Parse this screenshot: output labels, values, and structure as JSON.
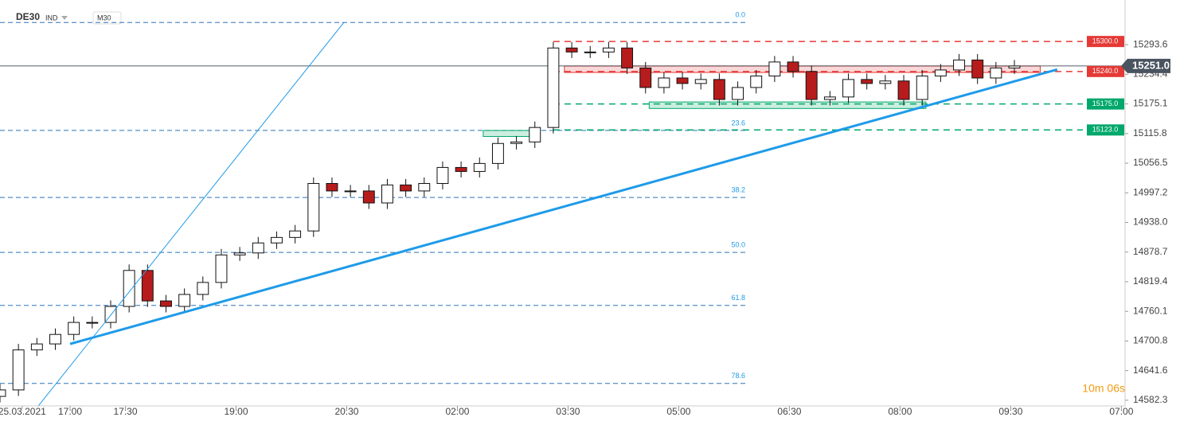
{
  "chart_data": {
    "type": "candlestick",
    "symbol": "DE30",
    "instrument_type": "IND",
    "interval": "M30",
    "countdown": "10m 06s",
    "x": [
      0,
      5,
      10,
      15,
      20,
      25,
      30,
      35,
      40,
      45,
      50,
      55,
      60,
      65,
      70,
      75,
      80,
      85,
      90,
      95,
      100,
      105,
      110,
      115,
      120,
      125,
      130,
      135,
      140,
      145,
      150,
      155,
      160,
      165,
      170,
      175,
      180,
      185,
      190,
      195,
      200,
      205,
      210,
      215,
      220,
      225,
      230,
      235,
      240,
      245,
      250,
      255,
      260,
      265,
      270,
      275
    ],
    "open": [
      14590,
      14603,
      14683,
      14695,
      14714,
      14738,
      14738,
      14770,
      14842,
      14781,
      14770,
      14794,
      14818,
      14873,
      14877,
      14897,
      14908,
      14921,
      15016,
      15001,
      15001,
      14977,
      15013,
      15001,
      15016,
      15048,
      15040,
      15056,
      15096,
      15099,
      15128,
      15287,
      15279,
      15279,
      15287,
      15247,
      15208,
      15227,
      15216,
      15224,
      15184,
      15208,
      15231,
      15259,
      15240,
      15184,
      15189,
      15224,
      15216,
      15221,
      15184,
      15231,
      15243,
      15263,
      15227,
      15247
    ],
    "high": [
      14615,
      14695,
      14707,
      14726,
      14750,
      14750,
      14782,
      14854,
      14854,
      14793,
      14806,
      14830,
      14885,
      14889,
      14909,
      14920,
      14933,
      15028,
      15028,
      15013,
      15013,
      15025,
      15025,
      15028,
      15060,
      15060,
      15068,
      15108,
      15111,
      15140,
      15299,
      15299,
      15291,
      15299,
      15299,
      15259,
      15239,
      15239,
      15236,
      15236,
      15220,
      15243,
      15271,
      15271,
      15252,
      15201,
      15236,
      15236,
      15233,
      15233,
      15243,
      15255,
      15275,
      15275,
      15259,
      15263
    ],
    "low": [
      14578,
      14591,
      14671,
      14683,
      14702,
      14726,
      14726,
      14758,
      14769,
      14758,
      14758,
      14782,
      14806,
      14861,
      14865,
      14885,
      14896,
      14909,
      14989,
      14989,
      14965,
      14965,
      14989,
      14989,
      15004,
      15028,
      15028,
      15044,
      15084,
      15087,
      15116,
      15267,
      15267,
      15267,
      15235,
      15196,
      15196,
      15204,
      15204,
      15172,
      15172,
      15196,
      15219,
      15228,
      15172,
      15172,
      15177,
      15204,
      15204,
      15172,
      15172,
      15219,
      15231,
      15215,
      15215,
      15235
    ],
    "close": [
      14603,
      14683,
      14695,
      14714,
      14738,
      14738,
      14770,
      14842,
      14781,
      14770,
      14794,
      14818,
      14873,
      14877,
      14897,
      14908,
      14921,
      15016,
      15001,
      15001,
      14977,
      15013,
      15001,
      15016,
      15048,
      15040,
      15056,
      15096,
      15099,
      15128,
      15287,
      15279,
      15279,
      15287,
      15247,
      15208,
      15227,
      15216,
      15224,
      15184,
      15208,
      15231,
      15259,
      15240,
      15184,
      15189,
      15224,
      15216,
      15221,
      15184,
      15231,
      15243,
      15263,
      15227,
      15247,
      15251
    ],
    "up_color": "#ffffff",
    "down_color": "#b71c1c",
    "xlim": [
      0,
      305
    ],
    "xticks": [
      {
        "value": 6,
        "label": "25.03.2021"
      },
      {
        "value": 19,
        "label": "17:00"
      },
      {
        "value": 34,
        "label": "17:30"
      },
      {
        "value": 64,
        "label": "19:00"
      },
      {
        "value": 94,
        "label": "20:30"
      },
      {
        "value": 124,
        "label": "02:00"
      },
      {
        "value": 154,
        "label": "03:30"
      },
      {
        "value": 184,
        "label": "05:00"
      },
      {
        "value": 214,
        "label": "06:30"
      },
      {
        "value": 244,
        "label": "08:00"
      },
      {
        "value": 274,
        "label": "09:30"
      },
      {
        "value": 304,
        "label": "07:00"
      }
    ],
    "ylim": [
      14571,
      15383
    ],
    "yticks": [
      15293.6,
      15234.4,
      15175.1,
      15115.8,
      15056.5,
      14997.2,
      {
        "value": 14938,
        "label": "14938.0"
      },
      14878.7,
      14819.4,
      14760.1,
      14700.8,
      14641.6,
      14582.3
    ],
    "current_price": {
      "value": 15251,
      "label": "15251.0"
    },
    "fib_levels": [
      {
        "label": "0.0",
        "value": 15338
      },
      {
        "label": "23.6",
        "value": 15122
      },
      {
        "label": "38.2",
        "value": 14988
      },
      {
        "label": "50.0",
        "value": 14878
      },
      {
        "label": "61.8",
        "value": 14772
      },
      {
        "label": "78.6",
        "value": 14616
      }
    ],
    "levels": [
      {
        "value": 15300,
        "label": "15300.0",
        "color": "#e53935"
      },
      {
        "value": 15240,
        "label": "15240.0",
        "color": "#e53935"
      },
      {
        "value": 15175,
        "label": "15175.0",
        "color": "#00a86b"
      },
      {
        "value": 15123,
        "label": "15123.0",
        "color": "#00a86b"
      }
    ],
    "trendlines": [
      {
        "x": [
          10.4,
          93.2
        ],
        "y": [
          14571,
          15338
        ],
        "color": "#1e9be9",
        "width": 1
      },
      {
        "x": [
          19,
          286.6
        ],
        "y": [
          14695,
          15244
        ],
        "color": "#1e9be9",
        "width": 3
      }
    ],
    "zones": [
      {
        "x": [
          153,
          282
        ],
        "y": [
          15238,
          15251
        ],
        "color": "#e53935"
      },
      {
        "x": [
          176,
          251
        ],
        "y": [
          15166,
          15179
        ],
        "color": "#00a86b"
      },
      {
        "x": [
          131,
          145
        ],
        "y": [
          15110,
          15122
        ],
        "color": "#00a86b"
      }
    ]
  }
}
